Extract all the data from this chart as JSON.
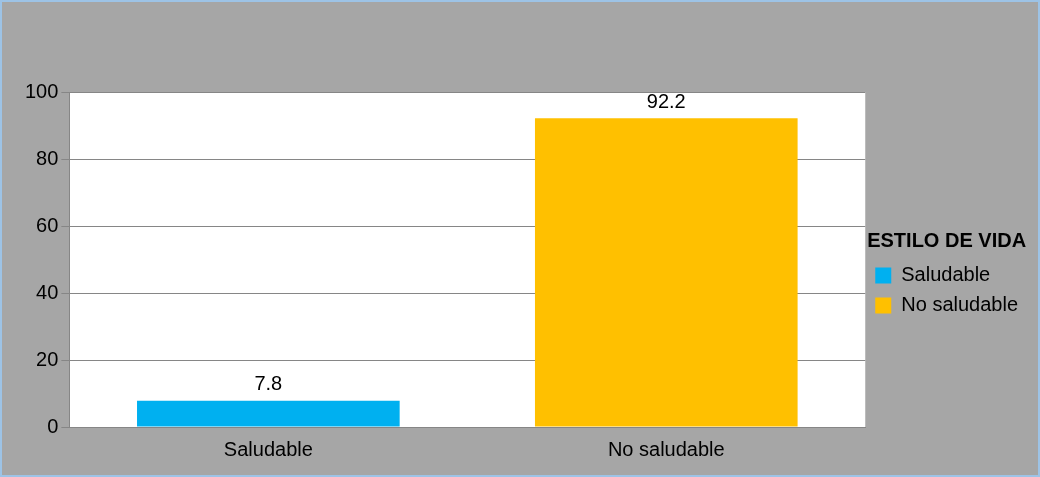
{
  "chart_data": {
    "type": "bar",
    "legend_title": "ESTILO DE VIDA",
    "categories": [
      "Saludable",
      "No saludable"
    ],
    "series": [
      {
        "name": "Saludable",
        "color": "#00b0f0",
        "values": [
          7.8,
          null
        ]
      },
      {
        "name": "No saludable",
        "color": "#ffc000",
        "values": [
          null,
          92.2
        ]
      }
    ],
    "ylim": [
      0,
      100
    ],
    "yticks": [
      0,
      20,
      40,
      60,
      80,
      100
    ],
    "grid": "y",
    "legend": "right",
    "data_labels": true
  }
}
